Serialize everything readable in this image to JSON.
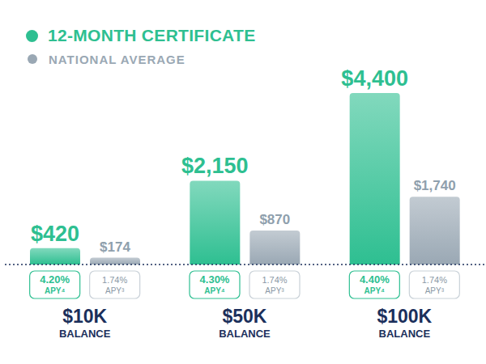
{
  "chart_data": {
    "type": "bar",
    "categories": [
      "$10K BALANCE",
      "$50K BALANCE",
      "$100K BALANCE"
    ],
    "series": [
      {
        "name": "12-MONTH CERTIFICATE",
        "color": "#2ebf91",
        "values": [
          420,
          2150,
          4400
        ],
        "value_labels": [
          "$420",
          "$2,150",
          "$4,400"
        ],
        "apy_labels": [
          "4.20%",
          "4.30%",
          "4.40%"
        ],
        "apy_note": "APY⁴"
      },
      {
        "name": "NATIONAL AVERAGE",
        "color": "#9aa8b4",
        "values": [
          174,
          870,
          1740
        ],
        "value_labels": [
          "$174",
          "$870",
          "$1,740"
        ],
        "apy_labels": [
          "1.74%",
          "1.74%",
          "1.74%"
        ],
        "apy_note": "APY³"
      }
    ],
    "ylim": [
      0,
      4400
    ],
    "data_labels": true,
    "tick_labels": "x",
    "legend": "top-left"
  }
}
